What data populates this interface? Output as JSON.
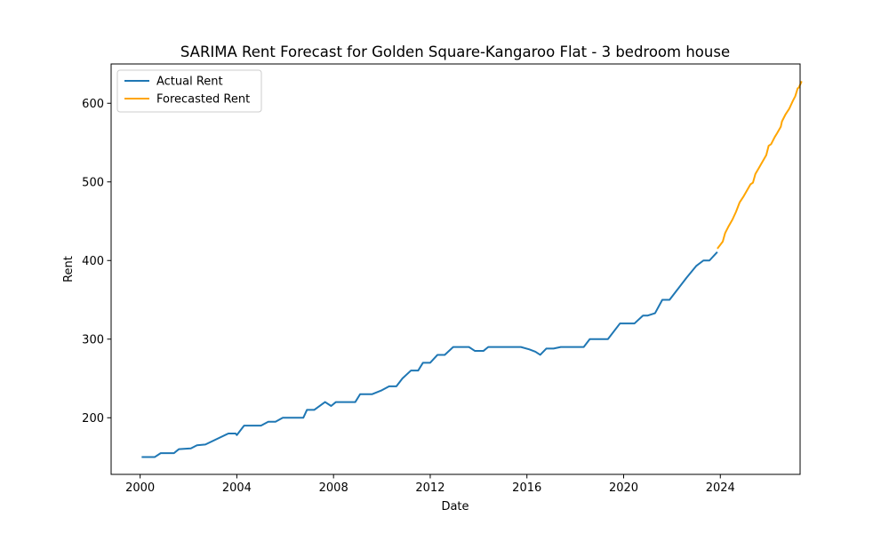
{
  "chart_data": {
    "type": "line",
    "title": "SARIMA Rent Forecast for Golden Square-Kangaroo Flat - 3 bedroom house",
    "xlabel": "Date",
    "ylabel": "Rent",
    "xlim": [
      1998.8,
      2027.3
    ],
    "ylim": [
      128,
      650
    ],
    "x_ticks": [
      2000,
      2004,
      2008,
      2012,
      2016,
      2020,
      2024
    ],
    "x_tick_labels": [
      "2000",
      "2004",
      "2008",
      "2012",
      "2016",
      "2020",
      "2024"
    ],
    "y_ticks": [
      200,
      300,
      400,
      500,
      600
    ],
    "y_tick_labels": [
      "200",
      "300",
      "400",
      "500",
      "600"
    ],
    "grid": false,
    "legend_position": "top-left",
    "series": [
      {
        "name": "Actual Rent",
        "color": "#1f77b4",
        "points": [
          [
            2000.1,
            150
          ],
          [
            2000.6,
            150
          ],
          [
            2000.85,
            155
          ],
          [
            2001.4,
            155
          ],
          [
            2001.6,
            160
          ],
          [
            2002.1,
            161
          ],
          [
            2002.35,
            165
          ],
          [
            2002.7,
            166
          ],
          [
            2003.65,
            180
          ],
          [
            2003.95,
            180
          ],
          [
            2004.0,
            178
          ],
          [
            2004.3,
            190
          ],
          [
            2004.8,
            190
          ],
          [
            2005.0,
            190
          ],
          [
            2005.3,
            195
          ],
          [
            2005.6,
            195
          ],
          [
            2005.9,
            200
          ],
          [
            2006.4,
            200
          ],
          [
            2006.75,
            200
          ],
          [
            2006.9,
            210
          ],
          [
            2007.2,
            210
          ],
          [
            2007.65,
            220
          ],
          [
            2007.9,
            215
          ],
          [
            2008.1,
            220
          ],
          [
            2008.6,
            220
          ],
          [
            2008.9,
            220
          ],
          [
            2009.1,
            230
          ],
          [
            2009.6,
            230
          ],
          [
            2010.0,
            235
          ],
          [
            2010.3,
            240
          ],
          [
            2010.6,
            240
          ],
          [
            2010.85,
            250
          ],
          [
            2011.2,
            260
          ],
          [
            2011.5,
            260
          ],
          [
            2011.7,
            270
          ],
          [
            2012.0,
            270
          ],
          [
            2012.3,
            280
          ],
          [
            2012.6,
            280
          ],
          [
            2012.95,
            290
          ],
          [
            2013.4,
            290
          ],
          [
            2013.6,
            290
          ],
          [
            2013.85,
            285
          ],
          [
            2014.2,
            285
          ],
          [
            2014.4,
            290
          ],
          [
            2015.0,
            290
          ],
          [
            2015.4,
            290
          ],
          [
            2015.75,
            290
          ],
          [
            2016.1,
            287
          ],
          [
            2016.35,
            284
          ],
          [
            2016.55,
            280
          ],
          [
            2016.8,
            288
          ],
          [
            2017.1,
            288
          ],
          [
            2017.4,
            290
          ],
          [
            2018.0,
            290
          ],
          [
            2018.35,
            290
          ],
          [
            2018.6,
            300
          ],
          [
            2019.0,
            300
          ],
          [
            2019.35,
            300
          ],
          [
            2019.85,
            320
          ],
          [
            2020.2,
            320
          ],
          [
            2020.45,
            320
          ],
          [
            2020.8,
            330
          ],
          [
            2021.0,
            330
          ],
          [
            2021.3,
            333
          ],
          [
            2021.6,
            350
          ],
          [
            2021.9,
            350
          ],
          [
            2022.2,
            362
          ],
          [
            2022.6,
            378
          ],
          [
            2023.0,
            393
          ],
          [
            2023.3,
            400
          ],
          [
            2023.55,
            400
          ],
          [
            2023.85,
            410
          ]
        ]
      },
      {
        "name": "Forecasted Rent",
        "color": "#ffa500",
        "points": [
          [
            2023.9,
            416
          ],
          [
            2024.1,
            424
          ],
          [
            2024.2,
            435
          ],
          [
            2024.35,
            444
          ],
          [
            2024.5,
            452
          ],
          [
            2024.65,
            462
          ],
          [
            2024.8,
            474
          ],
          [
            2024.95,
            481
          ],
          [
            2025.1,
            489
          ],
          [
            2025.25,
            497
          ],
          [
            2025.35,
            499
          ],
          [
            2025.45,
            510
          ],
          [
            2025.6,
            518
          ],
          [
            2025.75,
            526
          ],
          [
            2025.9,
            534
          ],
          [
            2026.0,
            546
          ],
          [
            2026.1,
            548
          ],
          [
            2026.25,
            557
          ],
          [
            2026.35,
            562
          ],
          [
            2026.5,
            570
          ],
          [
            2026.55,
            577
          ],
          [
            2026.7,
            586
          ],
          [
            2026.85,
            593
          ],
          [
            2027.0,
            603
          ],
          [
            2027.1,
            609
          ],
          [
            2027.2,
            619
          ],
          [
            2027.25,
            620
          ],
          [
            2027.35,
            627
          ]
        ]
      }
    ]
  }
}
